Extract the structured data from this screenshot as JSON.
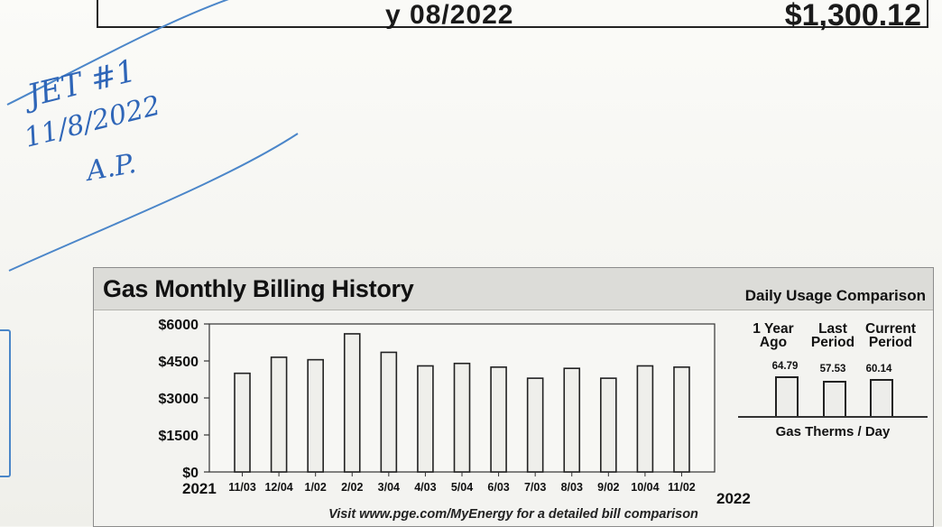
{
  "top_box": {
    "date_fragment": "y 08/2022",
    "amount": "$1,300.12"
  },
  "annotation": {
    "line1": "JET #1",
    "line2": "11/8/2022",
    "line3": "A.P.",
    "pen_color": "#2f66b8"
  },
  "gas_panel": {
    "title": "Gas Monthly Billing History",
    "daily_title": "Daily Usage Comparison",
    "footnote": "Visit www.pge.com/MyEnergy for a detailed bill comparison",
    "daily": {
      "columns": [
        {
          "line1": "1 Year",
          "line2": "Ago",
          "value": "64.79"
        },
        {
          "line1": "Last",
          "line2": "Period",
          "value": "57.53"
        },
        {
          "line1": "Current",
          "line2": "Period",
          "value": "60.14"
        }
      ],
      "footer": "Gas Therms / Day"
    }
  },
  "chart_data": {
    "type": "bar",
    "title": "Gas Monthly Billing History",
    "xlabel": "",
    "ylabel": "",
    "ylim": [
      0,
      6000
    ],
    "y_ticks": [
      "$0",
      "$1500",
      "$3000",
      "$4500",
      "$6000"
    ],
    "year_start": "2021",
    "year_end": "2022",
    "categories": [
      "11/03",
      "12/04",
      "1/02",
      "2/02",
      "3/04",
      "4/03",
      "5/04",
      "6/03",
      "7/03",
      "8/03",
      "9/02",
      "10/04",
      "11/02"
    ],
    "values": [
      4000,
      4650,
      4550,
      5600,
      4850,
      4300,
      4400,
      4250,
      3800,
      4200,
      3800,
      4300,
      4250
    ],
    "grid": false
  }
}
